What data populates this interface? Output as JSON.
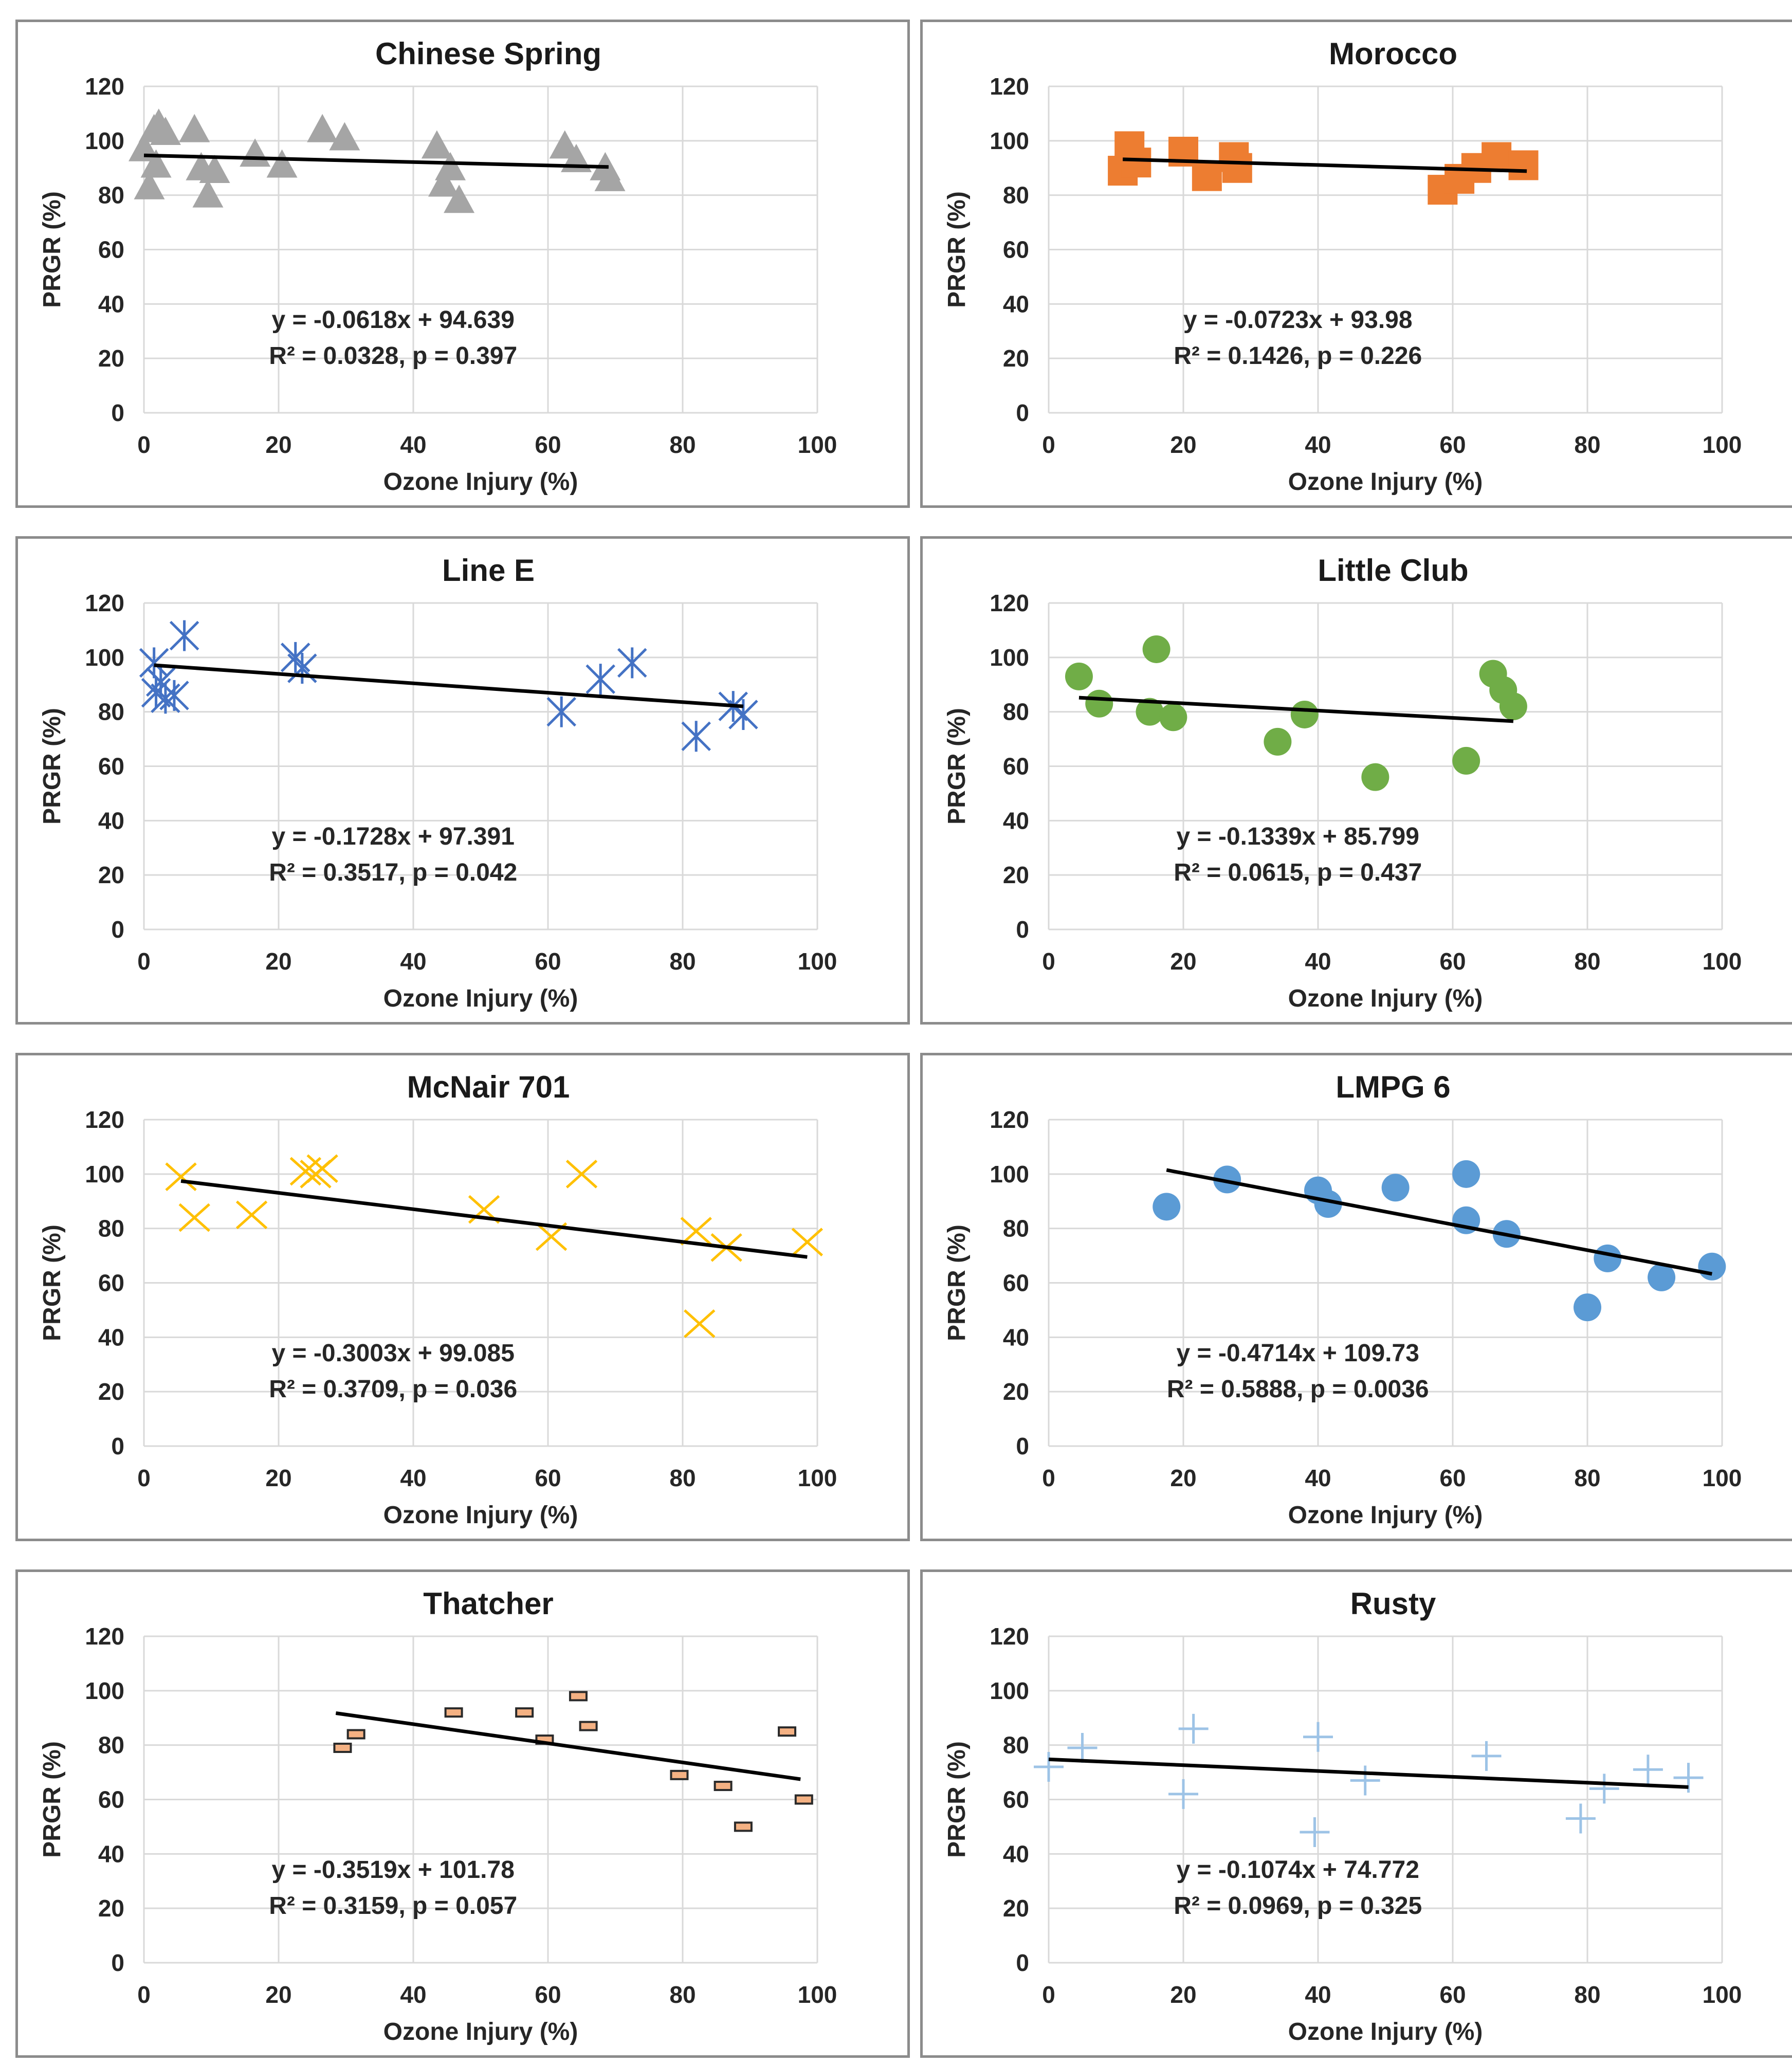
{
  "chart_data": [
    {
      "type": "scatter",
      "title": "Chinese Spring",
      "xlabel": "Ozone Injury (%)",
      "ylabel": "PRGR (%)",
      "xlim": [
        0,
        100
      ],
      "ylim": [
        0,
        120
      ],
      "xticks": [
        "0",
        "20",
        "40",
        "60",
        "80",
        "100"
      ],
      "yticks": [
        "0",
        "20",
        "40",
        "60",
        "80",
        "100",
        "120"
      ],
      "marker": "triangle",
      "color": "#a5a5a5",
      "x": [
        0,
        0.8,
        1.5,
        1.8,
        2.2,
        3.2,
        7.5,
        8.5,
        9.5,
        10.5,
        16.5,
        20.5,
        26.5,
        29.8,
        43.5,
        44.5,
        45.5,
        46.8,
        62.5,
        64.2,
        68.5,
        69.2
      ],
      "y": [
        97,
        83,
        104,
        91,
        106,
        103,
        104,
        90,
        80,
        89,
        95,
        91,
        104,
        101,
        98,
        84,
        90,
        78,
        98,
        93,
        90,
        86
      ],
      "trendline": {
        "x_start": 0,
        "x_end": 69,
        "slope": -0.0618,
        "intercept": 94.639
      },
      "equation": "y = -0.0618x + 94.639",
      "stats": "R² = 0.0328, p = 0.397"
    },
    {
      "type": "scatter",
      "title": "Morocco",
      "xlabel": "Ozone Injury (%)",
      "ylabel": "PRGR (%)",
      "xlim": [
        0,
        100
      ],
      "ylim": [
        0,
        120
      ],
      "xticks": [
        "0",
        "20",
        "40",
        "60",
        "80",
        "100"
      ],
      "yticks": [
        "0",
        "20",
        "40",
        "60",
        "80",
        "100",
        "120"
      ],
      "marker": "square",
      "color": "#ed7d31",
      "x": [
        11,
        12,
        13,
        20,
        23.5,
        27.5,
        28,
        58.5,
        61,
        63.5,
        66.5,
        70.5
      ],
      "y": [
        89,
        98,
        92,
        96,
        87,
        94,
        90,
        82,
        86,
        90,
        94,
        91
      ],
      "trendline": {
        "x_start": 11,
        "x_end": 71,
        "slope": -0.0723,
        "intercept": 93.98
      },
      "equation": "y = -0.0723x + 93.98",
      "stats": "R² = 0.1426, p = 0.226"
    },
    {
      "type": "scatter",
      "title": "Line E",
      "xlabel": "Ozone Injury (%)",
      "ylabel": "PRGR (%)",
      "xlim": [
        0,
        100
      ],
      "ylim": [
        0,
        120
      ],
      "xticks": [
        "0",
        "20",
        "40",
        "60",
        "80",
        "100"
      ],
      "yticks": [
        "0",
        "20",
        "40",
        "60",
        "80",
        "100",
        "120"
      ],
      "marker": "star",
      "color": "#4472c4",
      "x": [
        1.5,
        1.8,
        2.5,
        3.2,
        4.5,
        6,
        22.5,
        23.5,
        62,
        67.8,
        72.5,
        82,
        87.5,
        89
      ],
      "y": [
        98,
        87,
        91,
        85,
        86,
        108,
        100,
        96,
        80,
        92,
        98,
        71,
        82,
        79
      ],
      "trendline": {
        "x_start": 1.5,
        "x_end": 89,
        "slope": -0.1728,
        "intercept": 97.391
      },
      "equation": "y = -0.1728x + 97.391",
      "stats": "R² = 0.3517, p = 0.042"
    },
    {
      "type": "scatter",
      "title": "Little Club",
      "xlabel": "Ozone Injury (%)",
      "ylabel": "PRGR (%)",
      "xlim": [
        0,
        100
      ],
      "ylim": [
        0,
        120
      ],
      "xticks": [
        "0",
        "20",
        "40",
        "60",
        "80",
        "100"
      ],
      "yticks": [
        "0",
        "20",
        "40",
        "60",
        "80",
        "100",
        "120"
      ],
      "marker": "circle",
      "color": "#70ad47",
      "x": [
        4.5,
        7.5,
        15,
        16,
        18.5,
        34,
        38,
        48.5,
        62,
        66,
        67.5,
        69
      ],
      "y": [
        93,
        83,
        80,
        103,
        78,
        69,
        79,
        56,
        62,
        94,
        88,
        82
      ],
      "trendline": {
        "x_start": 4.5,
        "x_end": 69,
        "slope": -0.1339,
        "intercept": 85.799
      },
      "equation": "y = -0.1339x + 85.799",
      "stats": "R² = 0.0615, p = 0.437"
    },
    {
      "type": "scatter",
      "title": "McNair 701",
      "xlabel": "Ozone Injury (%)",
      "ylabel": "PRGR (%)",
      "xlim": [
        0,
        100
      ],
      "ylim": [
        0,
        120
      ],
      "xticks": [
        "0",
        "20",
        "40",
        "60",
        "80",
        "100"
      ],
      "yticks": [
        "0",
        "20",
        "40",
        "60",
        "80",
        "100",
        "120"
      ],
      "marker": "x",
      "color": "#ffc000",
      "x": [
        5.5,
        7.5,
        16,
        24,
        25.5,
        26.5,
        50.5,
        60.5,
        65,
        82,
        82.5,
        86.5,
        98.5
      ],
      "y": [
        99,
        84,
        85,
        101,
        100,
        102,
        87,
        77,
        100,
        79,
        45,
        73,
        75
      ],
      "trendline": {
        "x_start": 5.5,
        "x_end": 98.5,
        "slope": -0.3003,
        "intercept": 99.085
      },
      "equation": "y = -0.3003x + 99.085",
      "stats": "R² = 0.3709, p = 0.036"
    },
    {
      "type": "scatter",
      "title": "LMPG 6",
      "xlabel": "Ozone Injury (%)",
      "ylabel": "PRGR (%)",
      "xlim": [
        0,
        100
      ],
      "ylim": [
        0,
        120
      ],
      "xticks": [
        "0",
        "20",
        "40",
        "60",
        "80",
        "100"
      ],
      "yticks": [
        "0",
        "20",
        "40",
        "60",
        "80",
        "100",
        "120"
      ],
      "marker": "circle",
      "color": "#5b9bd5",
      "x": [
        17.5,
        26.5,
        40,
        41.5,
        51.5,
        62,
        62,
        68,
        80,
        83,
        91,
        98.5
      ],
      "y": [
        88,
        98,
        94,
        89,
        95,
        100,
        83,
        78,
        51,
        69,
        62,
        66
      ],
      "trendline": {
        "x_start": 17.5,
        "x_end": 98.5,
        "slope": -0.4714,
        "intercept": 109.73
      },
      "equation": "y = -0.4714x + 109.73",
      "stats": "R² = 0.5888, p = 0.0036"
    },
    {
      "type": "scatter",
      "title": "Thatcher",
      "xlabel": "Ozone Injury (%)",
      "ylabel": "PRGR (%)",
      "xlim": [
        0,
        100
      ],
      "ylim": [
        0,
        120
      ],
      "xticks": [
        "0",
        "20",
        "40",
        "60",
        "80",
        "100"
      ],
      "yticks": [
        "0",
        "20",
        "40",
        "60",
        "80",
        "100",
        "120"
      ],
      "marker": "dash",
      "color": "#f4b183",
      "x": [
        29.5,
        31.5,
        46,
        56.5,
        59.5,
        64.5,
        66,
        79.5,
        86,
        89,
        95.5,
        98
      ],
      "y": [
        79,
        84,
        92,
        92,
        82,
        98,
        87,
        69,
        65,
        50,
        85,
        60
      ],
      "trendline": {
        "x_start": 28.5,
        "x_end": 97.5,
        "slope": -0.3519,
        "intercept": 101.78
      },
      "equation": "y = -0.3519x + 101.78",
      "stats": "R² = 0.3159, p = 0.057"
    },
    {
      "type": "scatter",
      "title": "Rusty",
      "xlabel": "Ozone Injury (%)",
      "ylabel": "PRGR (%)",
      "xlim": [
        0,
        100
      ],
      "ylim": [
        0,
        120
      ],
      "xticks": [
        "0",
        "20",
        "40",
        "60",
        "80",
        "100"
      ],
      "yticks": [
        "0",
        "20",
        "40",
        "60",
        "80",
        "100",
        "120"
      ],
      "marker": "plus",
      "color": "#9dc3e6",
      "x": [
        0,
        5,
        20,
        21.5,
        39.5,
        40,
        47,
        65,
        79,
        82.5,
        89,
        95
      ],
      "y": [
        72,
        79,
        62,
        86,
        48,
        83,
        67,
        76,
        53,
        64,
        71,
        68
      ],
      "trendline": {
        "x_start": 0,
        "x_end": 95,
        "slope": -0.1074,
        "intercept": 74.772
      },
      "equation": "y = -0.1074x + 74.772",
      "stats": "R² = 0.0969, p = 0.325"
    }
  ]
}
